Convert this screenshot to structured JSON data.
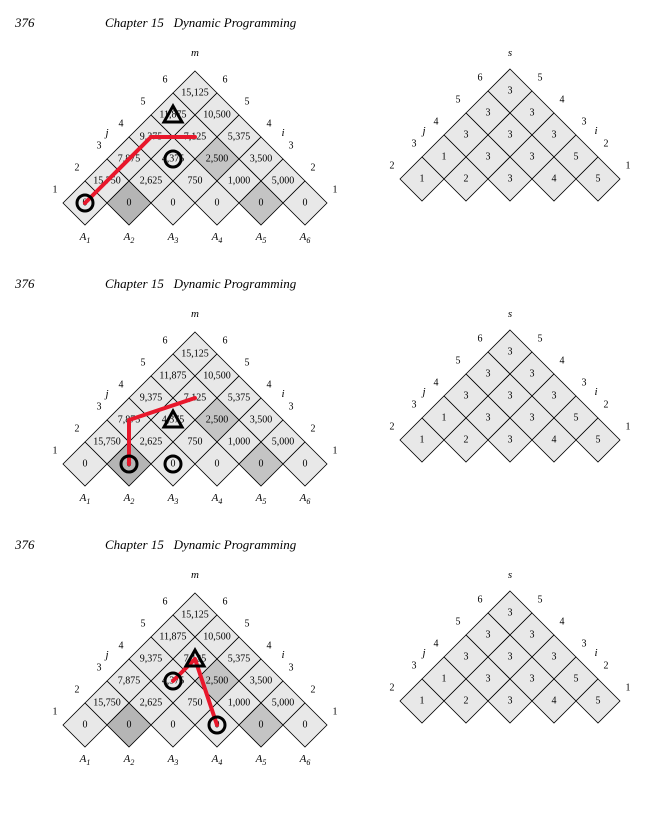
{
  "page_number": "376",
  "chapter_label": "Chapter 15",
  "chapter_title": "Dynamic Programming",
  "geometry": {
    "cell_half": 22,
    "n": 6,
    "m_svg_w": 310,
    "m_svg_h": 210,
    "s_svg_w": 260,
    "s_svg_h": 170
  },
  "colors": {
    "cell_light": "#e8e8e8",
    "cell_dark": "#c4c4c4",
    "cell_darker": "#b5b5b5",
    "stroke": "#000000",
    "red": "#e8172b"
  },
  "m_table": {
    "label": "m",
    "left_axis": "j",
    "right_axis": "i",
    "cells": [
      {
        "i": 1,
        "j": 6,
        "v": "15,125",
        "shade": 0
      },
      {
        "i": 1,
        "j": 5,
        "v": "11,875",
        "shade": 0
      },
      {
        "i": 2,
        "j": 6,
        "v": "10,500",
        "shade": 0
      },
      {
        "i": 1,
        "j": 4,
        "v": "9,375",
        "shade": 0
      },
      {
        "i": 2,
        "j": 5,
        "v": "7,125",
        "shade": 0
      },
      {
        "i": 3,
        "j": 6,
        "v": "5,375",
        "shade": 0
      },
      {
        "i": 1,
        "j": 3,
        "v": "7,875",
        "shade": 0
      },
      {
        "i": 2,
        "j": 4,
        "v": "4,375",
        "shade": 0
      },
      {
        "i": 3,
        "j": 5,
        "v": "2,500",
        "shade": 1
      },
      {
        "i": 4,
        "j": 6,
        "v": "3,500",
        "shade": 0
      },
      {
        "i": 1,
        "j": 2,
        "v": "15,750",
        "shade": 0
      },
      {
        "i": 2,
        "j": 3,
        "v": "2,625",
        "shade": 0
      },
      {
        "i": 3,
        "j": 4,
        "v": "750",
        "shade": 0
      },
      {
        "i": 4,
        "j": 5,
        "v": "1,000",
        "shade": 0
      },
      {
        "i": 5,
        "j": 6,
        "v": "5,000",
        "shade": 0
      },
      {
        "i": 1,
        "j": 1,
        "v": "0",
        "shade": 0
      },
      {
        "i": 2,
        "j": 2,
        "v": "0",
        "shade": 2
      },
      {
        "i": 3,
        "j": 3,
        "v": "0",
        "shade": 0
      },
      {
        "i": 4,
        "j": 4,
        "v": "0",
        "shade": 0
      },
      {
        "i": 5,
        "j": 5,
        "v": "0",
        "shade": 1
      },
      {
        "i": 6,
        "j": 6,
        "v": "0",
        "shade": 0
      }
    ],
    "bottom_labels": [
      "A_1",
      "A_2",
      "A_3",
      "A_4",
      "A_5",
      "A_6"
    ],
    "left_nums": [
      "1",
      "2",
      "3",
      "4",
      "5",
      "6"
    ],
    "right_nums": [
      "1",
      "2",
      "3",
      "4",
      "5",
      "6"
    ]
  },
  "s_table": {
    "label": "s",
    "left_axis": "j",
    "right_axis": "i",
    "cells": [
      {
        "i": 1,
        "j": 6,
        "v": "3"
      },
      {
        "i": 1,
        "j": 5,
        "v": "3"
      },
      {
        "i": 2,
        "j": 6,
        "v": "3"
      },
      {
        "i": 1,
        "j": 4,
        "v": "3"
      },
      {
        "i": 2,
        "j": 5,
        "v": "3"
      },
      {
        "i": 3,
        "j": 6,
        "v": "3"
      },
      {
        "i": 1,
        "j": 3,
        "v": "1"
      },
      {
        "i": 2,
        "j": 4,
        "v": "3"
      },
      {
        "i": 3,
        "j": 5,
        "v": "3"
      },
      {
        "i": 4,
        "j": 6,
        "v": "5"
      },
      {
        "i": 1,
        "j": 2,
        "v": "1"
      },
      {
        "i": 2,
        "j": 3,
        "v": "2"
      },
      {
        "i": 3,
        "j": 4,
        "v": "3"
      },
      {
        "i": 4,
        "j": 5,
        "v": "4"
      },
      {
        "i": 5,
        "j": 6,
        "v": "5"
      }
    ],
    "left_nums": [
      "2",
      "3",
      "4",
      "5",
      "6"
    ],
    "right_nums": [
      "1",
      "2",
      "3",
      "4",
      "5"
    ]
  },
  "panels": [
    {
      "red_path_cells": [
        {
          "i": 1,
          "j": 1
        },
        {
          "i": 1,
          "j": 2
        },
        {
          "i": 1,
          "j": 4
        },
        {
          "i": 2,
          "j": 5
        }
      ],
      "markers": [
        {
          "type": "circle",
          "i": 1,
          "j": 1
        },
        {
          "type": "circle",
          "i": 2,
          "j": 4
        },
        {
          "type": "triangle",
          "i": 1,
          "j": 5
        }
      ]
    },
    {
      "red_path_cells": [
        {
          "i": 2,
          "j": 2
        },
        {
          "i": 1,
          "j": 3
        },
        {
          "i": 2,
          "j": 5
        }
      ],
      "markers": [
        {
          "type": "circle",
          "i": 2,
          "j": 2
        },
        {
          "type": "circle",
          "i": 3,
          "j": 3
        },
        {
          "type": "triangle",
          "i": 2,
          "j": 4
        }
      ]
    },
    {
      "red_path_cells": [
        {
          "i": 2,
          "j": 4
        },
        {
          "i": 2,
          "j": 5
        },
        {
          "i": 4,
          "j": 4
        }
      ],
      "markers": [
        {
          "type": "circle",
          "i": 2,
          "j": 4
        },
        {
          "type": "circle",
          "i": 4,
          "j": 4
        },
        {
          "type": "triangle",
          "i": 2,
          "j": 5
        }
      ]
    }
  ]
}
